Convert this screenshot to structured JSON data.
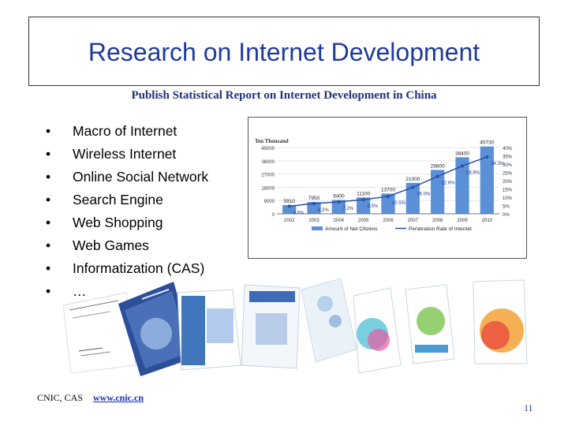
{
  "slide": {
    "title": "Research on Internet Development",
    "subtitle": "Publish Statistical Report on Internet Development in China",
    "bullets": [
      "Macro of Internet",
      "Wireless Internet",
      "Online Social Network",
      "Search Engine",
      "Web Shopping",
      "Web Games",
      "Informatization (CAS)",
      "…"
    ],
    "footer_org": "CNIC, CAS",
    "footer_link": "www.cnic.cn",
    "page_number": "11"
  },
  "chart_data": {
    "type": "bar",
    "ylabel": "Ten Thousand",
    "categories": [
      "2002",
      "2003",
      "2004",
      "2005",
      "2006",
      "2007",
      "2008",
      "2009",
      "2010"
    ],
    "series": [
      {
        "name": "Amount of Net Citizens",
        "type": "bar",
        "values": [
          5910,
          7950,
          9400,
          11100,
          13700,
          21000,
          29800,
          38400,
          45730
        ],
        "labels": [
          "5910",
          "7950",
          "9400",
          "11100",
          "13700",
          "21000",
          "29800",
          "38400",
          "45730"
        ]
      },
      {
        "name": "Penetration Rate of Internet",
        "type": "line",
        "values": [
          4.6,
          6.2,
          7.2,
          8.5,
          10.5,
          16.0,
          22.6,
          28.9,
          34.3
        ],
        "labels": [
          "4.6%",
          "6.2%",
          "7.2%",
          "8.5%",
          "10.5%",
          "16.0%",
          "22.6%",
          "28.9%",
          "34.3%"
        ]
      }
    ],
    "y_ticks": [
      "0",
      "9000",
      "18000",
      "27000",
      "36000",
      "45000"
    ],
    "y2_ticks": [
      "0%",
      "5%",
      "10%",
      "15%",
      "20%",
      "25%",
      "30%",
      "35%",
      "40%"
    ],
    "ylim": [
      0,
      45000
    ],
    "y2lim": [
      0,
      40
    ],
    "colors": {
      "bar": "#5b8fd6",
      "line": "#2a4fa8",
      "grid": "#e3e8f0"
    },
    "legend_position": "bottom"
  }
}
